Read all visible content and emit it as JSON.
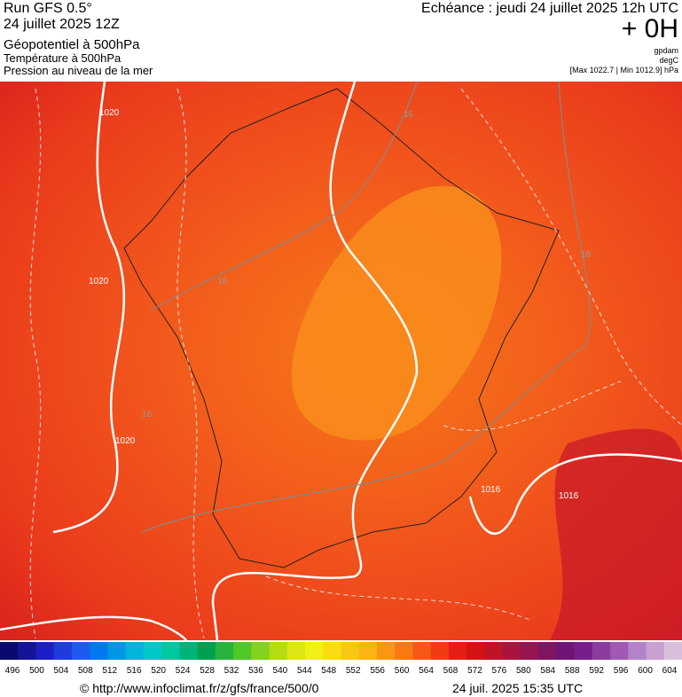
{
  "header": {
    "left": [
      "Run GFS 0.5°",
      "24 juillet 2025 12Z"
    ],
    "fields": [
      "Géopotentiel à 500hPa",
      "Température à 500hPa",
      "Pression au niveau de la mer"
    ],
    "right": "Echéance : jeudi 24 juillet 2025 12h UTC",
    "lead": "+ 0H",
    "units": [
      "gpdam",
      "degC",
      "[Max 1022.7 | Min 1012.9] hPa"
    ]
  },
  "map": {
    "labels": [
      "1020",
      "1020",
      "1020",
      "16",
      "16",
      "16",
      "16",
      "1016",
      "1016"
    ]
  },
  "colorbar": {
    "labels": [
      496,
      500,
      504,
      508,
      512,
      516,
      520,
      524,
      528,
      532,
      536,
      540,
      544,
      548,
      552,
      556,
      560,
      564,
      568,
      572,
      576,
      580,
      584,
      588,
      592,
      596,
      600,
      604
    ]
  },
  "footer": {
    "url": "© http://www.infoclimat.fr/z/gfs/france/500/0",
    "time": "24 juil. 2025 15:35 UTC"
  }
}
